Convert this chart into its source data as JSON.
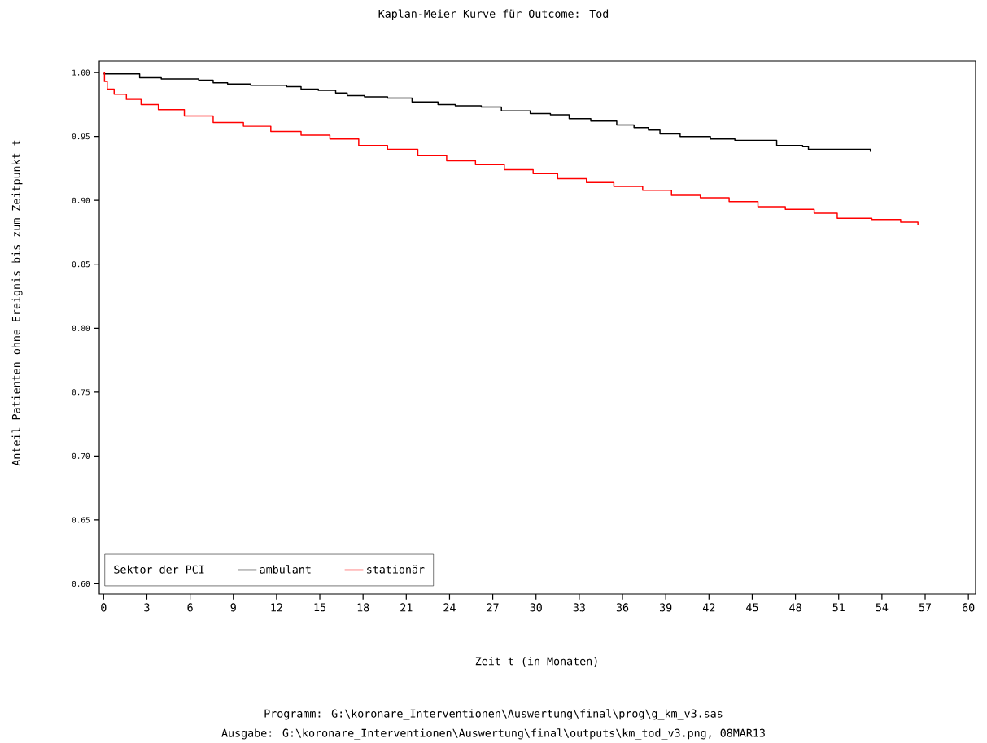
{
  "chart_data": {
    "type": "step",
    "title": "Kaplan-Meier Kurve für Outcome: Tod",
    "xlabel": "Zeit t (in Monaten)",
    "ylabel": "Anteil Patienten ohne Ereignis bis zum Zeitpunkt t",
    "legend_title": "Sektor der PCI",
    "legend": "bottom left",
    "xlim": [
      -0.3,
      60.5
    ],
    "ylim": [
      0.592,
      1.009
    ],
    "xticks": [
      0,
      3,
      6,
      9,
      12,
      15,
      18,
      21,
      24,
      27,
      30,
      33,
      36,
      39,
      42,
      45,
      48,
      51,
      54,
      57,
      60
    ],
    "yticks": [
      {
        "value": 0.6,
        "label": "0.60"
      },
      {
        "value": 0.65,
        "label": "0.65"
      },
      {
        "value": 0.7,
        "label": "0.70"
      },
      {
        "value": 0.75,
        "label": "0.75"
      },
      {
        "value": 0.8,
        "label": "0.80"
      },
      {
        "value": 0.85,
        "label": "0.85"
      },
      {
        "value": 0.9,
        "label": "0.90"
      },
      {
        "value": 0.95,
        "label": "0.95"
      },
      {
        "value": 1.0,
        "label": "1.00"
      }
    ],
    "series": [
      {
        "name": "ambulant",
        "color": "#000000",
        "x": [
          0,
          2.5,
          4.0,
          6.6,
          7.6,
          8.6,
          10.2,
          12.7,
          13.7,
          14.9,
          16.1,
          16.9,
          18.1,
          19.7,
          21.4,
          23.2,
          24.4,
          26.2,
          27.6,
          29.6,
          31.0,
          32.3,
          33.8,
          35.6,
          36.8,
          37.8,
          38.6,
          40.0,
          42.1,
          43.8,
          46.7,
          48.5,
          48.9,
          53.2,
          53.2
        ],
        "values": [
          0.999,
          0.996,
          0.995,
          0.994,
          0.992,
          0.991,
          0.99,
          0.989,
          0.987,
          0.986,
          0.984,
          0.982,
          0.981,
          0.98,
          0.977,
          0.975,
          0.974,
          0.973,
          0.97,
          0.968,
          0.967,
          0.964,
          0.962,
          0.959,
          0.957,
          0.955,
          0.952,
          0.95,
          0.948,
          0.947,
          0.943,
          0.942,
          0.94,
          0.94,
          0.938
        ]
      },
      {
        "name": "stationär",
        "color": "#ff0000",
        "x": [
          0,
          0.06,
          0.25,
          0.73,
          1.58,
          2.6,
          3.8,
          5.6,
          7.6,
          9.7,
          11.6,
          13.7,
          15.7,
          17.7,
          19.7,
          21.8,
          23.8,
          25.8,
          27.8,
          29.8,
          31.5,
          33.5,
          35.4,
          37.4,
          39.4,
          41.4,
          43.4,
          45.4,
          47.3,
          49.3,
          50.9,
          53.3,
          55.3,
          56.5
        ],
        "values": [
          1.0,
          0.993,
          0.987,
          0.983,
          0.979,
          0.975,
          0.971,
          0.966,
          0.961,
          0.958,
          0.954,
          0.951,
          0.948,
          0.943,
          0.94,
          0.935,
          0.931,
          0.928,
          0.924,
          0.921,
          0.917,
          0.914,
          0.911,
          0.908,
          0.904,
          0.902,
          0.899,
          0.895,
          0.893,
          0.89,
          0.886,
          0.885,
          0.883,
          0.881
        ]
      }
    ],
    "annotations": [
      "Programm: G:\\koronare_Interventionen\\Auswertung\\final\\prog\\g_km_v3.sas",
      "Ausgabe: G:\\koronare_Interventionen\\Auswertung\\final\\outputs\\km_tod_v3.png, 08MAR13"
    ]
  }
}
